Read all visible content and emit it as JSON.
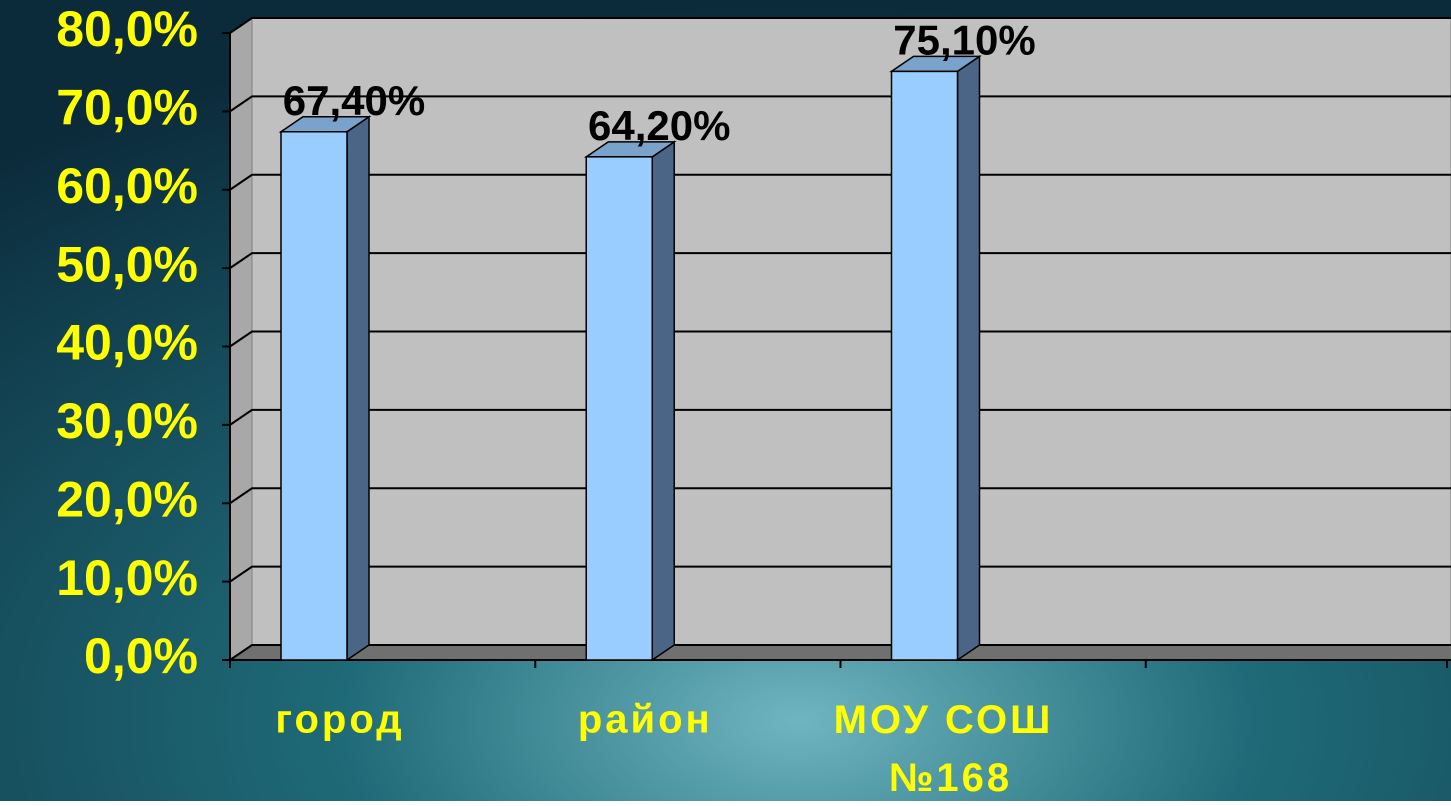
{
  "chart_data": {
    "type": "bar3d",
    "categories": [
      "город",
      "район",
      "МОУ СОШ №168",
      null
    ],
    "values": [
      67.4,
      64.2,
      75.1,
      null
    ],
    "value_labels": [
      "67,40%",
      "64,20%",
      "75,10%",
      null
    ],
    "color": "#99ccff",
    "ylim": [
      0,
      80
    ],
    "yticks": [
      {
        "value": 0,
        "label": "0,0%"
      },
      {
        "value": 10,
        "label": "10,0%"
      },
      {
        "value": 20,
        "label": "20,0%"
      },
      {
        "value": 30,
        "label": "30,0%"
      },
      {
        "value": 40,
        "label": "40,0%"
      },
      {
        "value": 50,
        "label": "50,0%"
      },
      {
        "value": 60,
        "label": "60,0%"
      },
      {
        "value": 70,
        "label": "70,0%"
      },
      {
        "value": 80,
        "label": "80,0%"
      }
    ],
    "grid": true
  }
}
